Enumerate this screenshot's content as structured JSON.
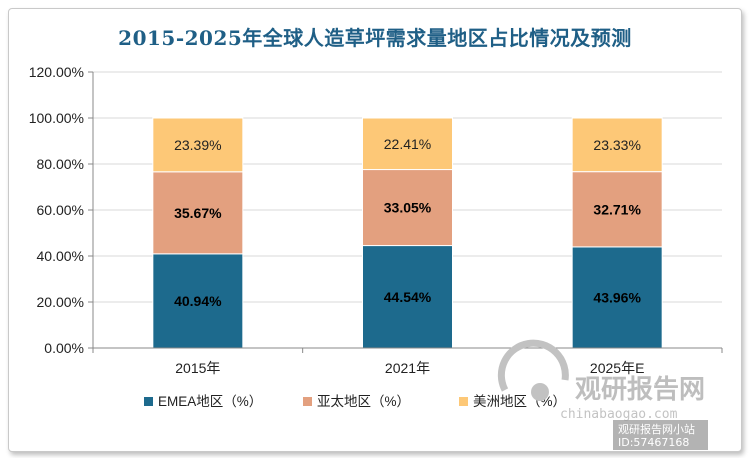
{
  "title": "2015-2025年全球人造草坪需求量地区占比情况及预测",
  "chart_data": {
    "type": "bar",
    "stacked": true,
    "categories": [
      "2015年",
      "2021年",
      "2025年E"
    ],
    "series": [
      {
        "name": "EMEA地区（%）",
        "values": [
          40.94,
          44.54,
          43.96
        ],
        "labels": [
          "40.94%",
          "44.54%",
          "43.96%"
        ],
        "color": "#1d6a8d",
        "label_color": "#000000",
        "label_bold": true
      },
      {
        "name": "亚太地区（%）",
        "values": [
          35.67,
          33.05,
          32.71
        ],
        "labels": [
          "35.67%",
          "33.05%",
          "32.71%"
        ],
        "color": "#e3a07f",
        "label_color": "#000000",
        "label_bold": true
      },
      {
        "name": "美洲地区（%）",
        "values": [
          23.39,
          22.41,
          23.33
        ],
        "labels": [
          "23.39%",
          "22.41%",
          "23.33%"
        ],
        "color": "#fdc877",
        "label_color": "#222222",
        "label_bold": false
      }
    ],
    "yticks": [
      "0.00%",
      "20.00%",
      "40.00%",
      "60.00%",
      "80.00%",
      "100.00%",
      "120.00%"
    ],
    "ylim": [
      0,
      120
    ],
    "grid": true,
    "legend_position": "bottom"
  },
  "watermark": {
    "logo_text": "观研报告网",
    "url_text": "chinabaogao.com",
    "small_text_1": "观研报告网小站",
    "small_text_2": "ID:57467168"
  }
}
